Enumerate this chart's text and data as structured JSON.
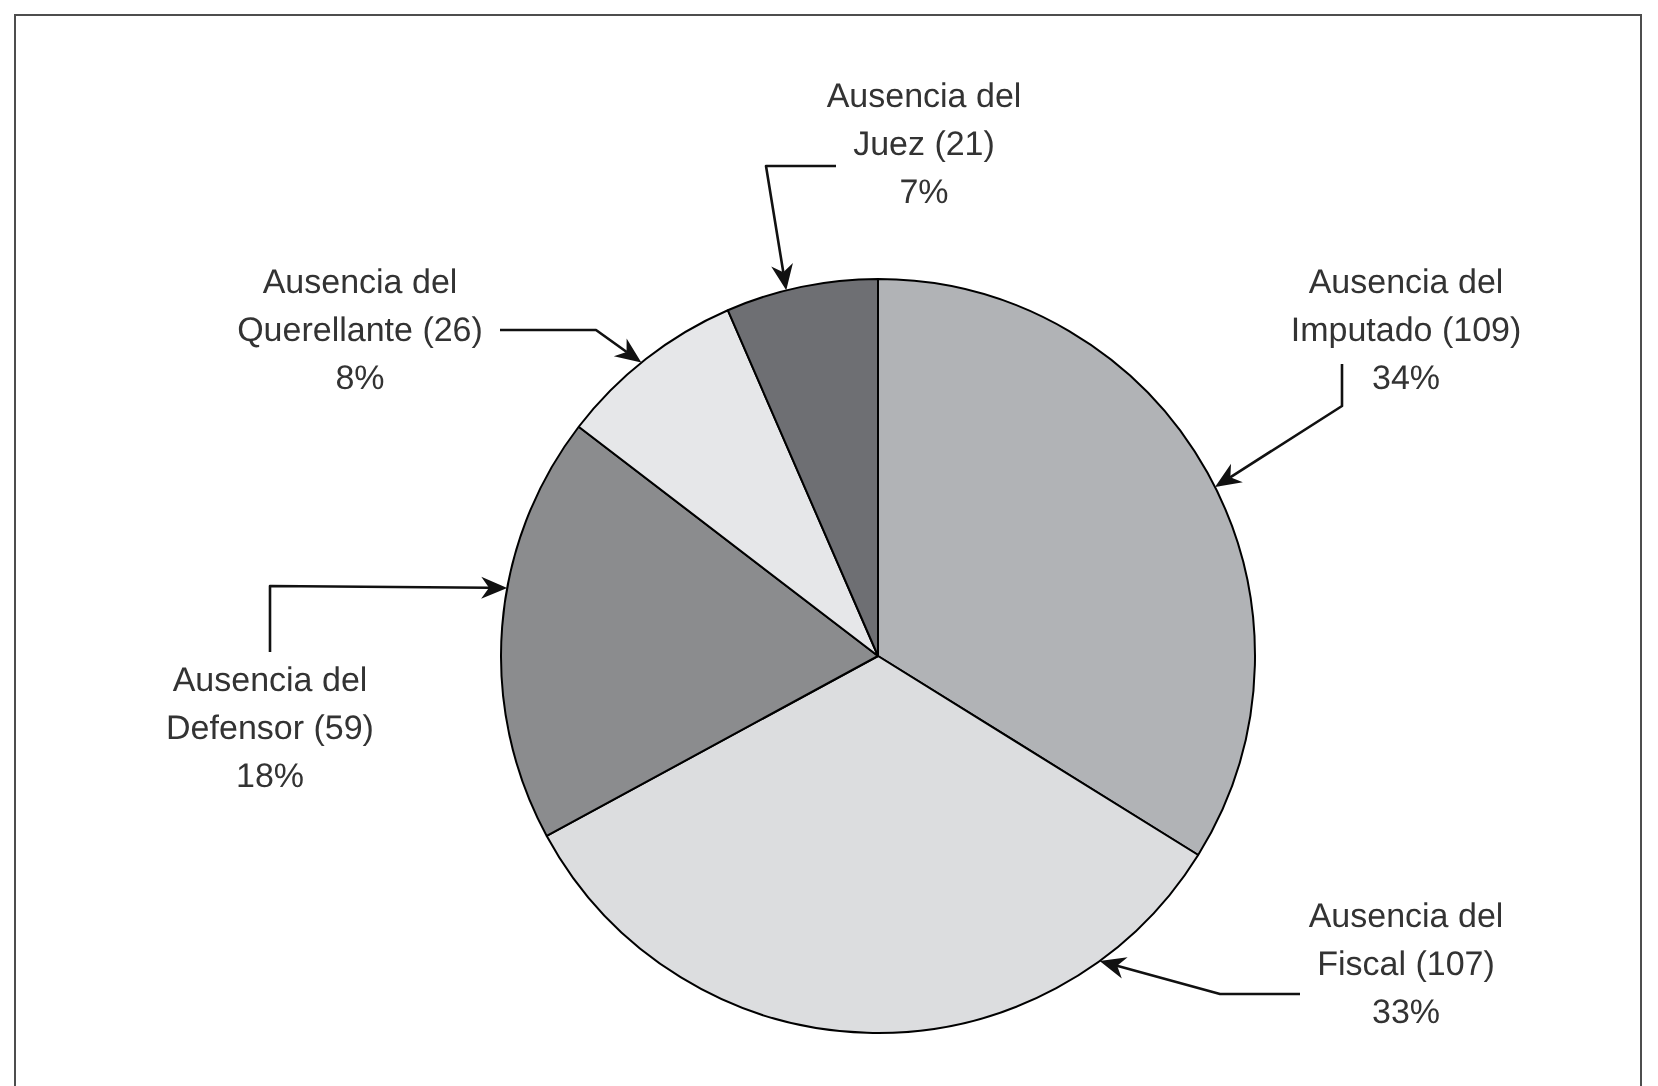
{
  "chart_data": {
    "type": "pie",
    "categories": [
      "Ausencia del Imputado",
      "Ausencia del Fiscal",
      "Ausencia del Defensor",
      "Ausencia del Querellante",
      "Ausencia del Juez"
    ],
    "values": [
      109,
      107,
      59,
      26,
      21
    ],
    "colors": [
      "#b1b3b6",
      "#dcdddf",
      "#8b8c8e",
      "#e6e7e9",
      "#6e6f73"
    ],
    "value_labels": [
      "(109) 34%",
      "(107) 33%",
      "(59) 18%",
      "(26) 8%",
      "(21) 7%"
    ]
  }
}
